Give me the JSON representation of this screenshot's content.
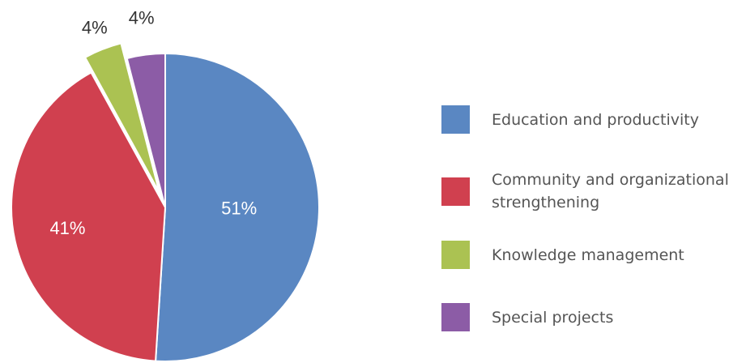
{
  "chart_data": {
    "type": "pie",
    "title": "",
    "slices": [
      {
        "label": "Education and productivity",
        "value": 51,
        "display": "51%",
        "color": "#5A87C2"
      },
      {
        "label": "Community and organizational strengthening",
        "value": 41,
        "display": "41%",
        "color": "#D0404F"
      },
      {
        "label": "Knowledge management",
        "value": 4,
        "display": "4%",
        "color": "#ABC252",
        "exploded": true
      },
      {
        "label": "Special projects",
        "value": 4,
        "display": "4%",
        "color": "#8C5CA6"
      }
    ],
    "legend_position": "right"
  }
}
